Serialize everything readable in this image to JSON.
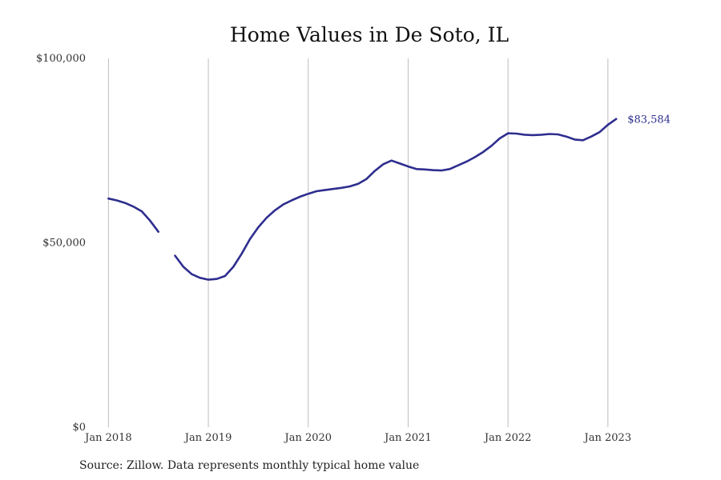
{
  "chart_data": {
    "type": "line",
    "title": "Home Values in De Soto, IL",
    "source": "Source: Zillow. Data represents monthly typical home value",
    "ylim": [
      0,
      100000
    ],
    "yticks": [
      {
        "value": 0,
        "label": "$0"
      },
      {
        "value": 50000,
        "label": "$50,000"
      },
      {
        "value": 100000,
        "label": "$100,000"
      }
    ],
    "xlim": [
      "2017-12",
      "2023-04"
    ],
    "xticks": [
      {
        "value": "2018-01",
        "label": "Jan 2018"
      },
      {
        "value": "2019-01",
        "label": "Jan 2019"
      },
      {
        "value": "2020-01",
        "label": "Jan 2020"
      },
      {
        "value": "2021-01",
        "label": "Jan 2021"
      },
      {
        "value": "2022-01",
        "label": "Jan 2022"
      },
      {
        "value": "2023-01",
        "label": "Jan 2023"
      }
    ],
    "grid": "vertical",
    "series": [
      {
        "color": "#2e2e8f",
        "end_label": "$83,584",
        "points": [
          [
            "2018-01",
            62000
          ],
          [
            "2018-02",
            61500
          ],
          [
            "2018-03",
            60800
          ],
          [
            "2018-04",
            59800
          ],
          [
            "2018-05",
            58500
          ],
          [
            "2018-06",
            56000
          ],
          [
            "2018-07",
            53000
          ],
          [
            "2018-08",
            null
          ],
          [
            "2018-09",
            46500
          ],
          [
            "2018-10",
            43500
          ],
          [
            "2018-11",
            41500
          ],
          [
            "2018-12",
            40500
          ],
          [
            "2019-01",
            40000
          ],
          [
            "2019-02",
            40200
          ],
          [
            "2019-03",
            41000
          ],
          [
            "2019-04",
            43500
          ],
          [
            "2019-05",
            47000
          ],
          [
            "2019-06",
            51000
          ],
          [
            "2019-07",
            54200
          ],
          [
            "2019-08",
            56800
          ],
          [
            "2019-09",
            58800
          ],
          [
            "2019-10",
            60400
          ],
          [
            "2019-11",
            61500
          ],
          [
            "2019-12",
            62500
          ],
          [
            "2020-01",
            63300
          ],
          [
            "2020-02",
            64000
          ],
          [
            "2020-03",
            64300
          ],
          [
            "2020-04",
            64600
          ],
          [
            "2020-05",
            64900
          ],
          [
            "2020-06",
            65300
          ],
          [
            "2020-07",
            66000
          ],
          [
            "2020-08",
            67300
          ],
          [
            "2020-09",
            69500
          ],
          [
            "2020-10",
            71300
          ],
          [
            "2020-11",
            72300
          ],
          [
            "2020-12",
            71500
          ],
          [
            "2021-01",
            70700
          ],
          [
            "2021-02",
            70000
          ],
          [
            "2021-03",
            69900
          ],
          [
            "2021-04",
            69700
          ],
          [
            "2021-05",
            69600
          ],
          [
            "2021-06",
            70000
          ],
          [
            "2021-07",
            71000
          ],
          [
            "2021-08",
            72000
          ],
          [
            "2021-09",
            73200
          ],
          [
            "2021-10",
            74600
          ],
          [
            "2021-11",
            76300
          ],
          [
            "2021-12",
            78300
          ],
          [
            "2022-01",
            79700
          ],
          [
            "2022-02",
            79600
          ],
          [
            "2022-03",
            79300
          ],
          [
            "2022-04",
            79200
          ],
          [
            "2022-05",
            79300
          ],
          [
            "2022-06",
            79500
          ],
          [
            "2022-07",
            79400
          ],
          [
            "2022-08",
            78800
          ],
          [
            "2022-09",
            78000
          ],
          [
            "2022-10",
            77800
          ],
          [
            "2022-11",
            78800
          ],
          [
            "2022-12",
            80000
          ],
          [
            "2023-01",
            82000
          ],
          [
            "2023-02",
            83584
          ]
        ]
      }
    ]
  }
}
